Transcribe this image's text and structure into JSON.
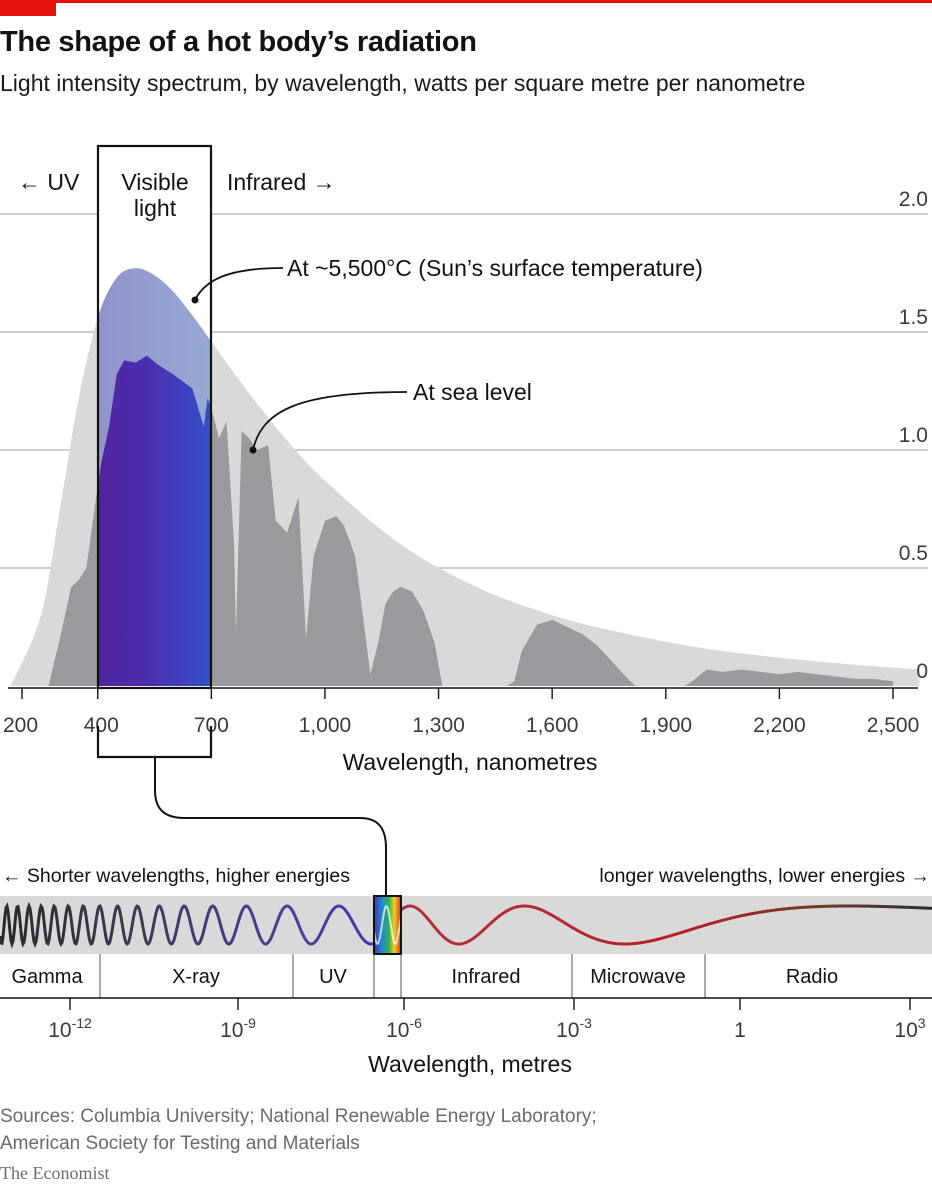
{
  "header": {
    "title": "The shape of a hot body’s radiation",
    "subtitle": "Light intensity spectrum, by wavelength, watts per square metre per nanometre"
  },
  "colors": {
    "brand_red": "#e3120b",
    "sun_fill": "#d9d9d9",
    "sea_fill": "#9a9a9e",
    "gridline": "#b0b0b0"
  },
  "chart_data": [
    {
      "type": "area",
      "xlabel": "Wavelength, nanometres",
      "ylabel": "",
      "xlim": [
        170,
        2570
      ],
      "ylim": [
        0,
        2.0
      ],
      "x_ticks": [
        200,
        400,
        700,
        1000,
        1300,
        1600,
        1900,
        2200,
        2500
      ],
      "x_tick_labels": [
        "200",
        "400",
        "700",
        "1,000",
        "1,300",
        "1,600",
        "1,900",
        "2,200",
        "2,500"
      ],
      "y_ticks": [
        0,
        0.5,
        1.0,
        1.5,
        2.0
      ],
      "y_tick_labels": [
        "0",
        "0.5",
        "1.0",
        "1.5",
        "2.0"
      ],
      "grid": true,
      "region_labels": [
        "← UV",
        "Visible light",
        "Infrared →"
      ],
      "visible_band": [
        400,
        700
      ],
      "series": [
        {
          "name": "At ~5,500°C (Sun’s surface temperature)",
          "x": [
            170,
            250,
            300,
            350,
            400,
            450,
            500,
            550,
            600,
            650,
            700,
            800,
            900,
            1000,
            1200,
            1400,
            1600,
            1800,
            2000,
            2200,
            2400,
            2570
          ],
          "y": [
            0.0,
            0.3,
            0.75,
            1.22,
            1.56,
            1.73,
            1.77,
            1.74,
            1.67,
            1.57,
            1.46,
            1.24,
            1.04,
            0.87,
            0.6,
            0.42,
            0.3,
            0.22,
            0.16,
            0.12,
            0.09,
            0.07
          ]
        },
        {
          "name": "At sea level",
          "x": [
            270,
            300,
            330,
            350,
            370,
            400,
            410,
            430,
            450,
            470,
            500,
            530,
            560,
            600,
            650,
            680,
            690,
            700,
            720,
            740,
            760,
            765,
            780,
            800,
            820,
            850,
            870,
            900,
            930,
            950,
            970,
            1000,
            1030,
            1050,
            1080,
            1100,
            1120,
            1140,
            1160,
            1180,
            1200,
            1230,
            1260,
            1290,
            1310,
            1330,
            1350,
            1370,
            1400,
            1440,
            1480,
            1500,
            1520,
            1560,
            1600,
            1640,
            1680,
            1720,
            1760,
            1800,
            1820,
            1850,
            1950,
            1970,
            2000,
            2010,
            2050,
            2100,
            2150,
            2200,
            2250,
            2300,
            2350,
            2400,
            2450,
            2500
          ],
          "y": [
            0.0,
            0.2,
            0.42,
            0.45,
            0.5,
            0.85,
            0.95,
            1.1,
            1.32,
            1.38,
            1.37,
            1.4,
            1.36,
            1.32,
            1.26,
            1.1,
            1.22,
            1.18,
            1.05,
            1.12,
            0.6,
            0.22,
            1.08,
            1.05,
            1.0,
            1.02,
            0.7,
            0.65,
            0.8,
            0.2,
            0.55,
            0.7,
            0.72,
            0.68,
            0.55,
            0.3,
            0.05,
            0.18,
            0.35,
            0.4,
            0.42,
            0.4,
            0.32,
            0.18,
            0.0,
            0.0,
            0.0,
            0.0,
            0.0,
            0.0,
            0.0,
            0.02,
            0.15,
            0.26,
            0.28,
            0.25,
            0.22,
            0.17,
            0.1,
            0.03,
            0.0,
            0.0,
            0.0,
            0.02,
            0.06,
            0.07,
            0.06,
            0.07,
            0.06,
            0.05,
            0.06,
            0.05,
            0.04,
            0.03,
            0.03,
            0.02
          ]
        }
      ],
      "annotations": [
        "At ~5,500°C (Sun’s surface temperature)",
        "At sea level"
      ]
    },
    {
      "type": "other",
      "title": "",
      "xlabel": "Wavelength, metres",
      "arrow_labels": [
        "← Shorter wavelengths, higher energies",
        "longer wavelengths, lower energies →"
      ],
      "bands": [
        "Gamma",
        "X-ray",
        "UV",
        "Infrared",
        "Microwave",
        "Radio"
      ],
      "x_tick_labels": [
        {
          "base": "10",
          "exp": "-12"
        },
        {
          "base": "10",
          "exp": "-9"
        },
        {
          "base": "10",
          "exp": "-6"
        },
        {
          "base": "10",
          "exp": "-3"
        },
        {
          "base": "1",
          "exp": ""
        },
        {
          "base": "10",
          "exp": "3"
        }
      ]
    }
  ],
  "footer": {
    "sources_line1": "Sources: Columbia University; National Renewable Energy Laboratory;",
    "sources_line2": "American Society for Testing and Materials",
    "brand": "The Economist"
  }
}
